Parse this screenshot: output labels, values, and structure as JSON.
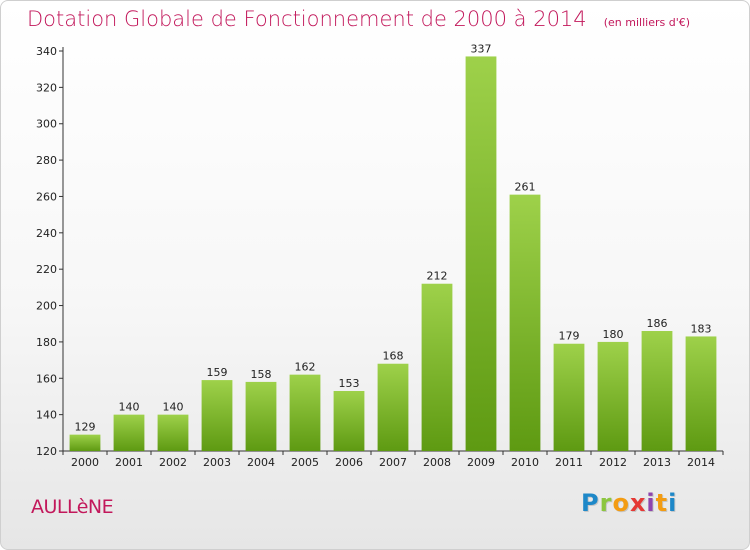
{
  "header": {
    "title": "Dotation Globale de Fonctionnement de 2000 à 2014",
    "subtitle": "(en milliers d'€)"
  },
  "footer": {
    "commune": "AULLèNE",
    "logo_letters": [
      "P",
      "r",
      "o",
      "x",
      "i",
      "t",
      "i"
    ],
    "logo_colors": [
      "#1e88c8",
      "#8cc63f",
      "#f39c12",
      "#e53935",
      "#8e44ad",
      "#f39c12",
      "#1e88c8"
    ]
  },
  "colors": {
    "bar_light": "#9ed14a",
    "bar_dark": "#5e9a12",
    "title": "#c2185b"
  },
  "chart_data": {
    "type": "bar",
    "categories": [
      "2000",
      "2001",
      "2002",
      "2003",
      "2004",
      "2005",
      "2006",
      "2007",
      "2008",
      "2009",
      "2010",
      "2011",
      "2012",
      "2013",
      "2014"
    ],
    "values": [
      129,
      140,
      140,
      159,
      158,
      162,
      153,
      168,
      212,
      337,
      261,
      179,
      180,
      186,
      183
    ],
    "ylim": [
      120,
      340
    ],
    "yticks": [
      120,
      140,
      160,
      180,
      200,
      220,
      240,
      260,
      280,
      300,
      320,
      340
    ],
    "grid": false,
    "data_labels": true
  }
}
